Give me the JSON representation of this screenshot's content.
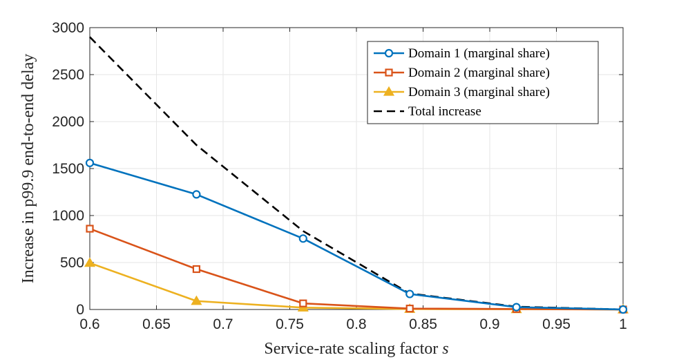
{
  "chart_data": {
    "type": "line",
    "title": "",
    "xlabel": "Service-rate scaling factor",
    "xlabel_var": "s",
    "ylabel": "Increase in p99.9 end-to-end delay",
    "xlim": [
      0.6,
      1.0
    ],
    "ylim": [
      0,
      3000
    ],
    "xticks": [
      0.6,
      0.65,
      0.7,
      0.75,
      0.8,
      0.85,
      0.9,
      0.95,
      1.0
    ],
    "xtick_labels": [
      "0.6",
      "0.65",
      "0.7",
      "0.75",
      "0.8",
      "0.85",
      "0.9",
      "0.95",
      "1"
    ],
    "yticks": [
      0,
      500,
      1000,
      1500,
      2000,
      2500,
      3000
    ],
    "ytick_labels": [
      "0",
      "500",
      "1000",
      "1500",
      "2000",
      "2500",
      "3000"
    ],
    "grid": true,
    "legend_position": "top-right",
    "x": [
      0.6,
      0.68,
      0.76,
      0.84,
      0.92,
      1.0
    ],
    "series": [
      {
        "name": "Domain 1 (marginal share)",
        "color": "#0072BD",
        "marker": "circle",
        "dash": "solid",
        "values": [
          1560,
          1225,
          755,
          165,
          25,
          0
        ]
      },
      {
        "name": "Domain 2 (marginal share)",
        "color": "#D95319",
        "marker": "square",
        "dash": "solid",
        "values": [
          860,
          430,
          65,
          10,
          5,
          0
        ]
      },
      {
        "name": "Domain 3 (marginal share)",
        "color": "#EDB120",
        "marker": "triangle",
        "dash": "solid",
        "values": [
          495,
          90,
          20,
          5,
          3,
          0
        ]
      },
      {
        "name": "Total increase",
        "color": "#000000",
        "marker": "none",
        "dash": "dashed",
        "values": [
          2900,
          1750,
          835,
          170,
          30,
          0
        ]
      }
    ]
  }
}
